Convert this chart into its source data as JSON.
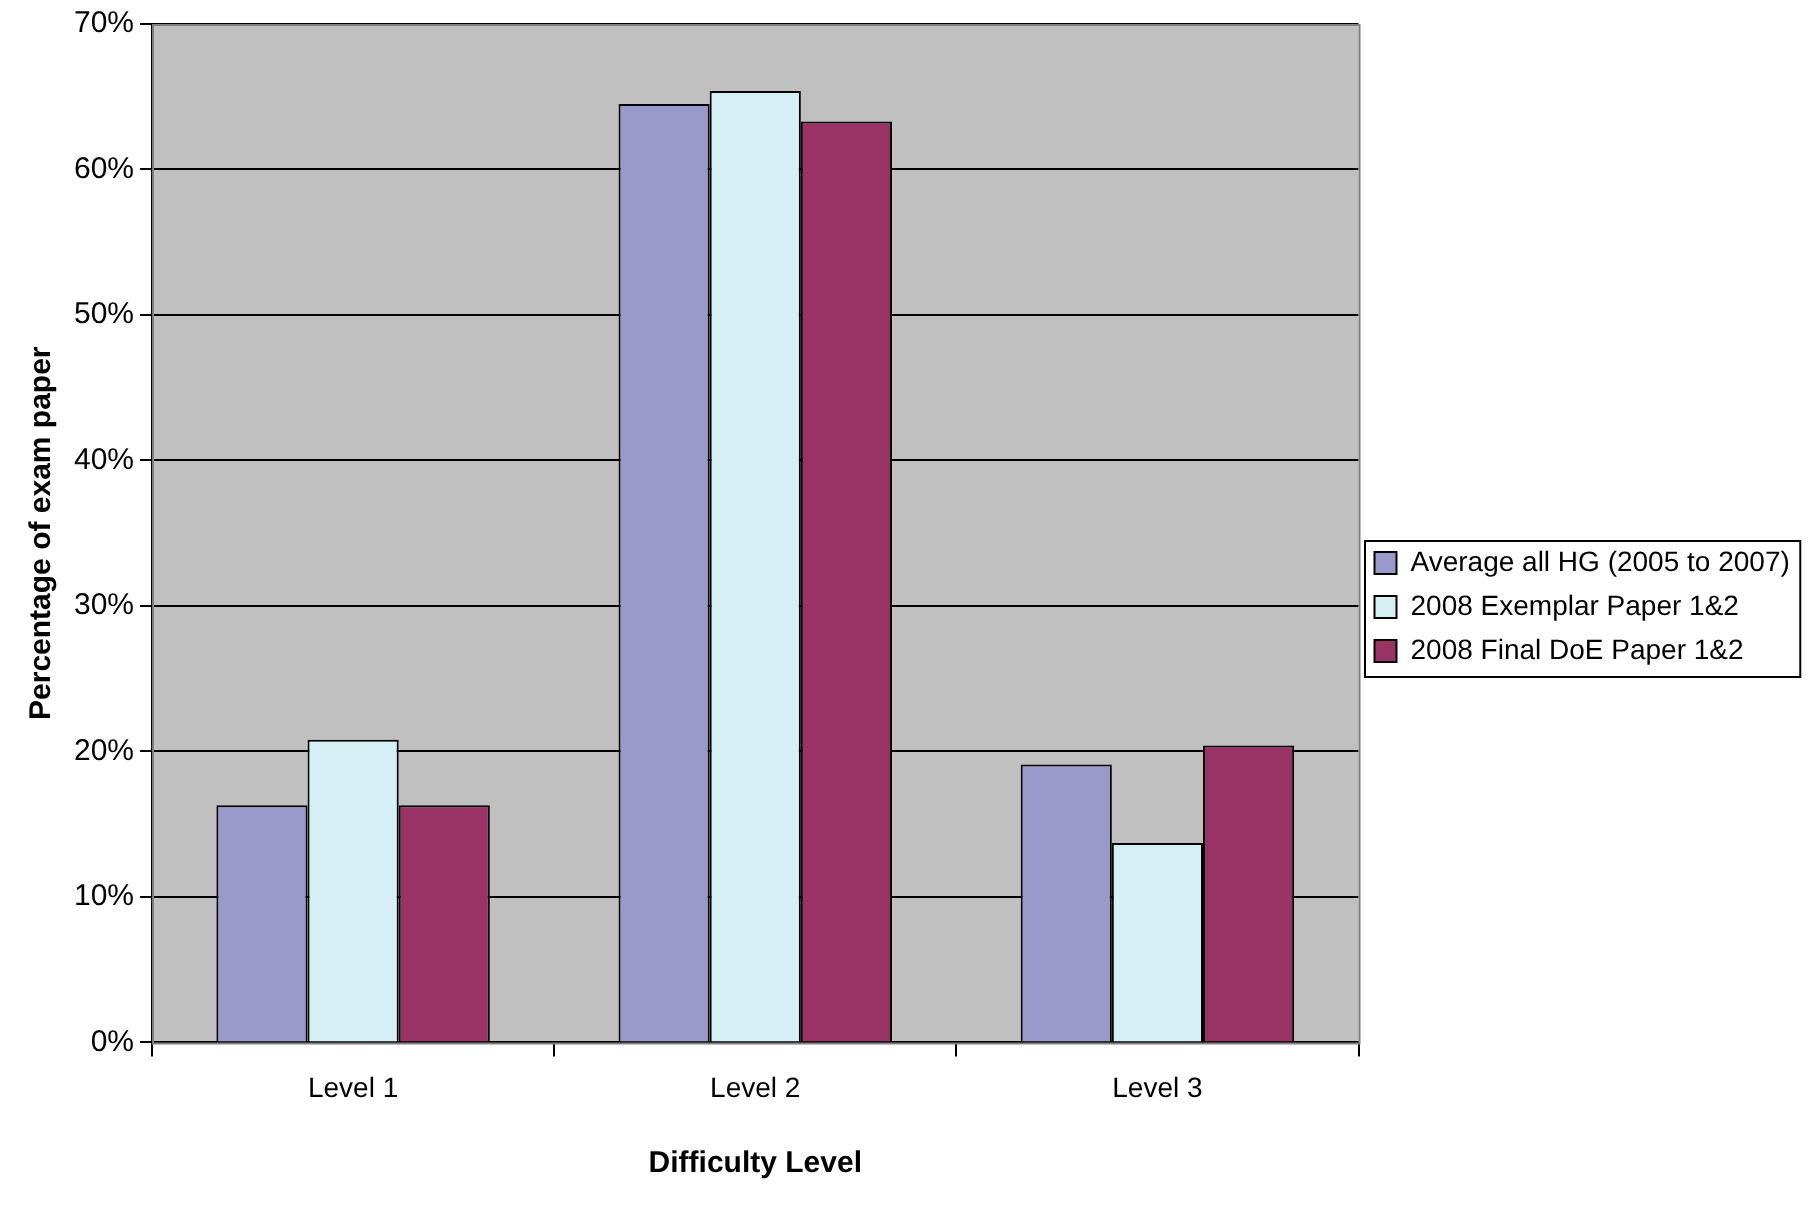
{
  "chart_data": {
    "type": "bar",
    "xlabel": "Difficulty Level",
    "ylabel": "Percentage of exam paper",
    "categories": [
      "Level 1",
      "Level 2",
      "Level 3"
    ],
    "series": [
      {
        "name": "Average all HG (2005 to 2007)",
        "color": "#9999cc",
        "values": [
          16.3,
          64.5,
          19.1
        ]
      },
      {
        "name": "2008 Exemplar Paper 1&2",
        "color": "#d4f0f4",
        "values": [
          20.8,
          65.4,
          13.7
        ]
      },
      {
        "name": "2008 Final DoE Paper 1&2",
        "color": "#993366",
        "values": [
          16.3,
          63.3,
          20.4
        ]
      }
    ],
    "ylim": [
      0,
      70
    ],
    "yticks": [
      {
        "value": 0,
        "label": "0%"
      },
      {
        "value": 10,
        "label": "10%"
      },
      {
        "value": 20,
        "label": "20%"
      },
      {
        "value": 30,
        "label": "30%"
      },
      {
        "value": 40,
        "label": "40%"
      },
      {
        "value": 50,
        "label": "50%"
      },
      {
        "value": 60,
        "label": "60%"
      },
      {
        "value": 70,
        "label": "70%"
      }
    ],
    "grid": "y",
    "legend": "right"
  }
}
